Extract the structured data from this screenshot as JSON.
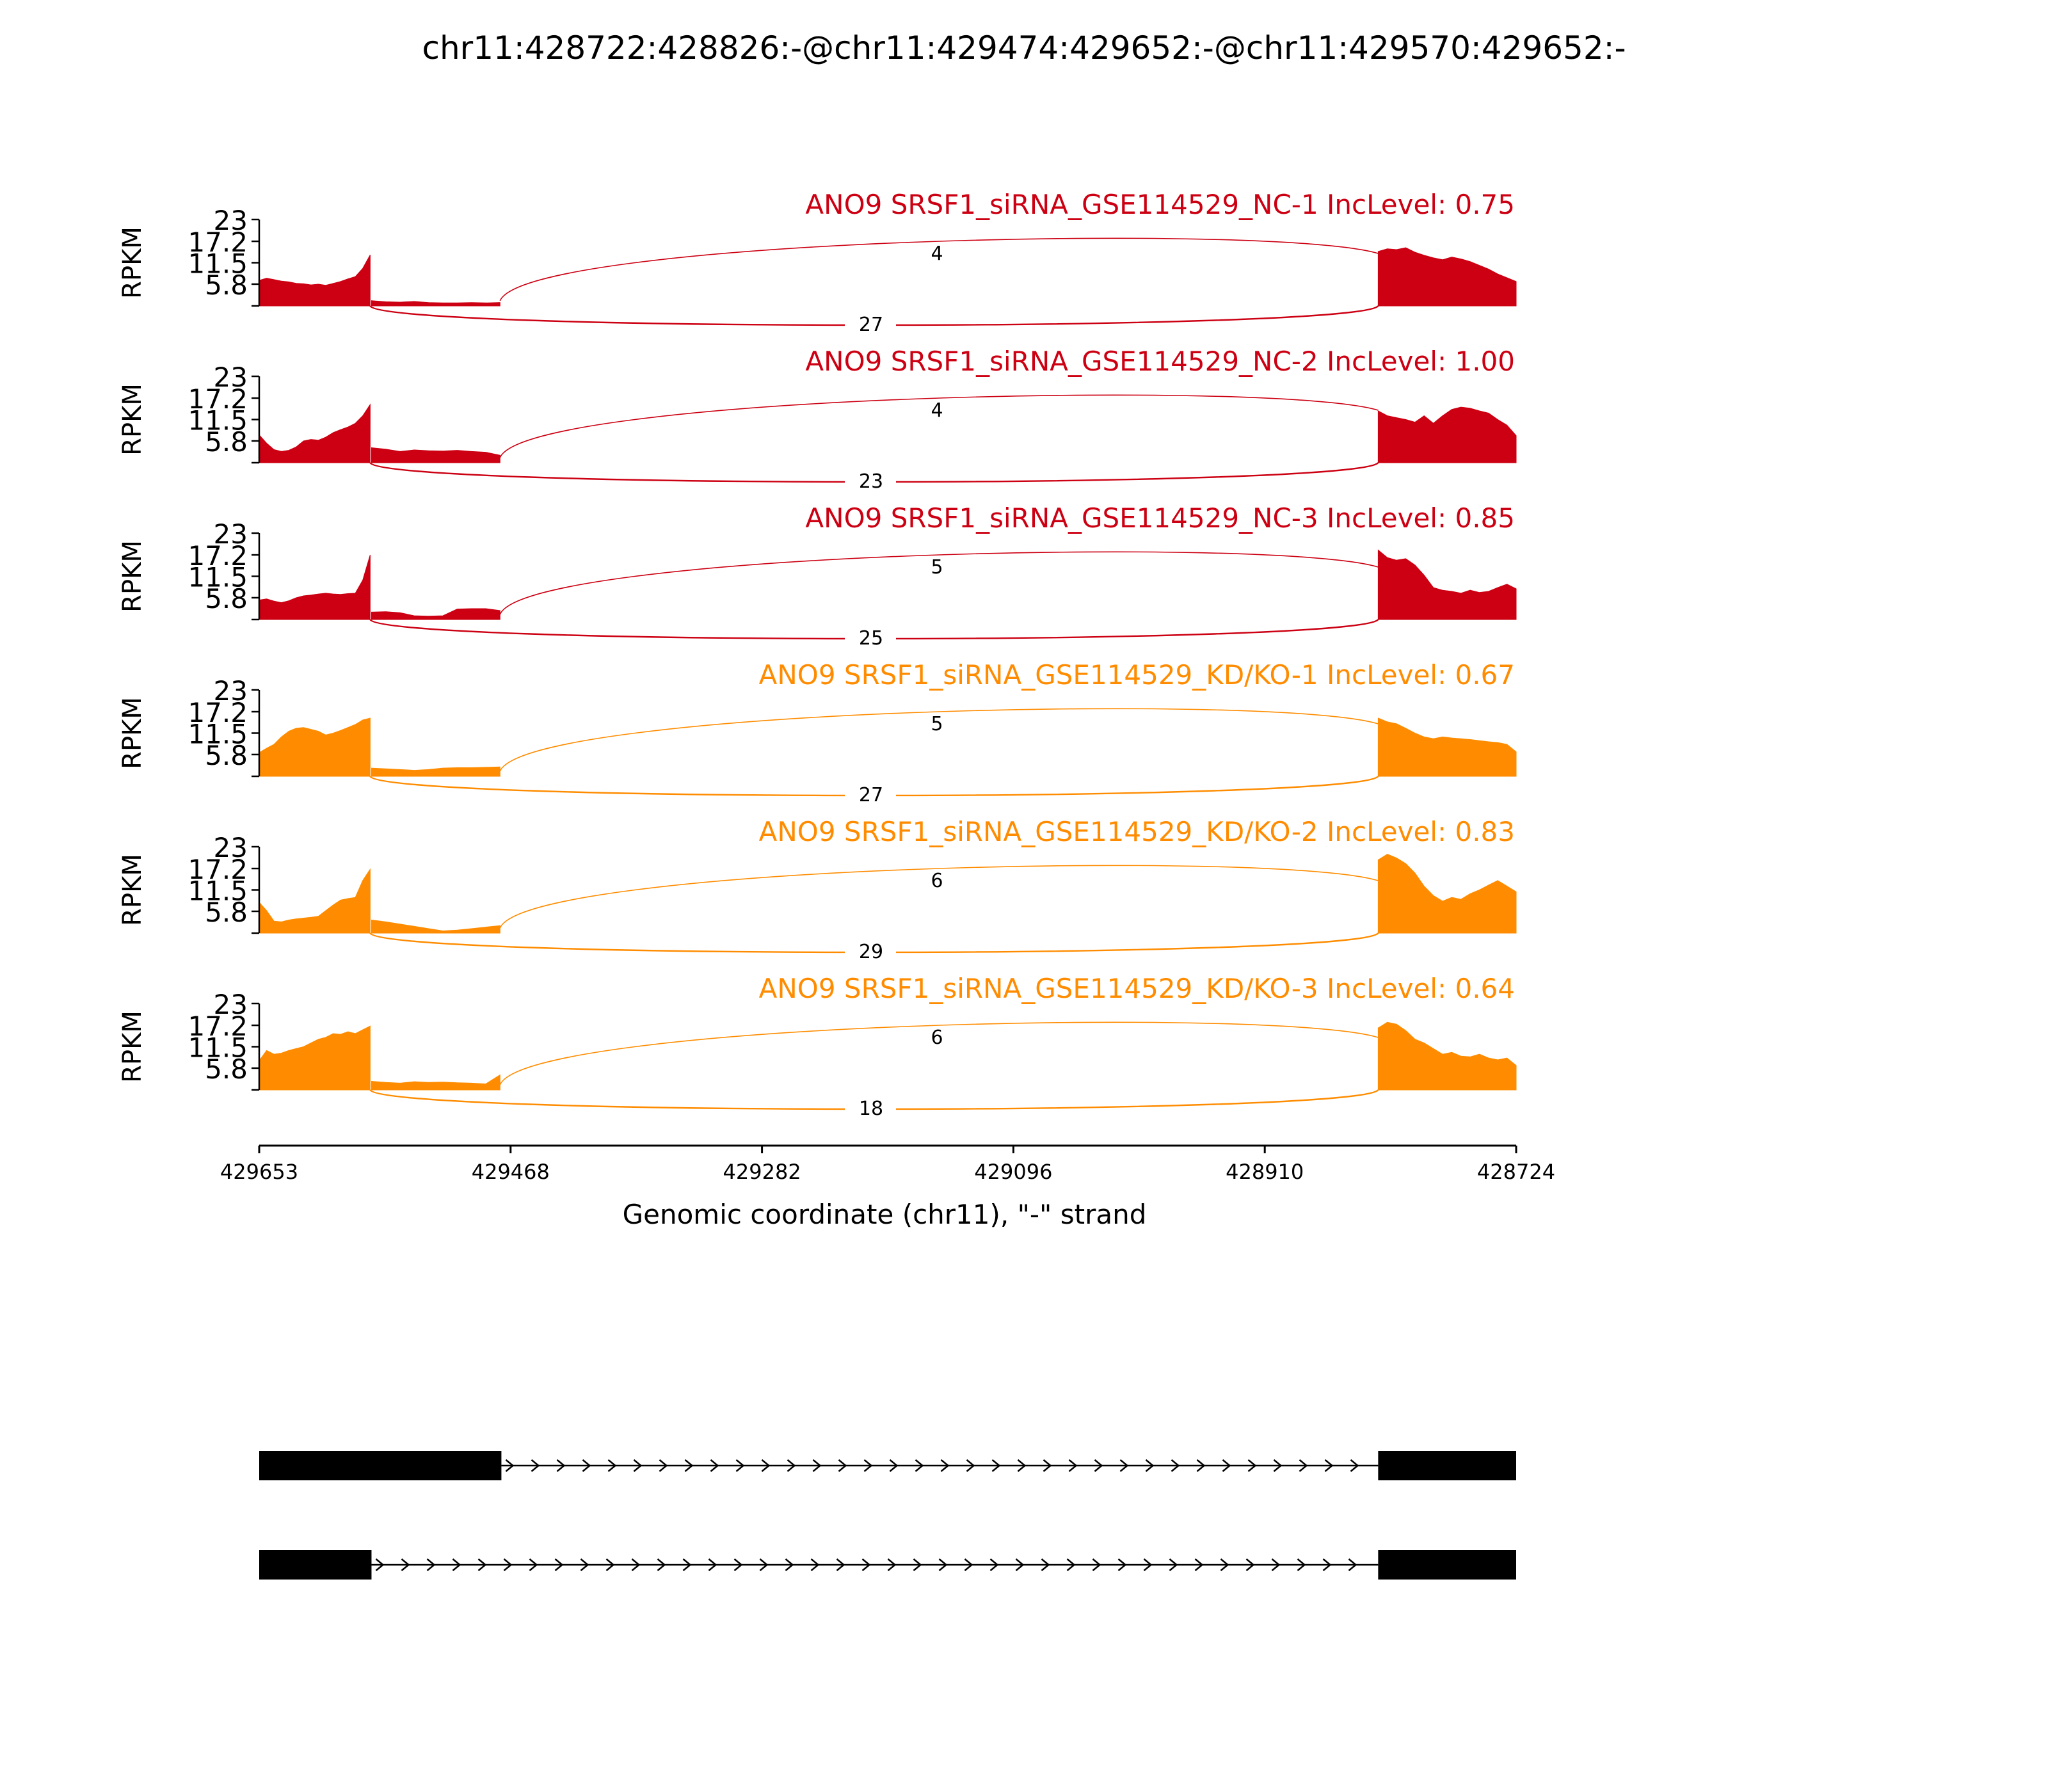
{
  "chart_data": {
    "type": "area",
    "title": "chr11:428722:428826:-@chr11:429474:429652:-@chr11:429570:429652:-",
    "xlabel": "Genomic coordinate (chr11), \"-\" strand",
    "ylabel": "RPKM",
    "xlim": [
      429653,
      428724
    ],
    "x_ticks": [
      "429653",
      "429468",
      "429282",
      "429096",
      "428910",
      "428724"
    ],
    "ylim": [
      0,
      23
    ],
    "y_ticks": [
      "5.8",
      "11.5",
      "17.2",
      "23"
    ],
    "colors": {
      "nc": "#cc0012",
      "kd": "#ff8c00",
      "gene_model": "#000000"
    },
    "panels": [
      {
        "name": "ANO9 SRSF1_siRNA_GSE114529_NC-1 IncLevel: 0.75",
        "group": "nc",
        "junction_top": "4",
        "junction_bottom": "27",
        "regions": [
          {
            "range": [
              429653,
              429571
            ],
            "values": [
              6.8,
              7.4,
              7.0,
              6.6,
              6.4,
              6.0,
              5.9,
              5.6,
              5.8,
              5.5,
              6.0,
              6.5,
              7.2,
              7.8,
              10.0,
              13.6
            ]
          },
          {
            "range": [
              429570,
              429475
            ],
            "values": [
              1.4,
              1.1,
              1.0,
              1.2,
              0.9,
              0.8,
              0.8,
              0.9,
              0.8,
              0.9
            ]
          },
          {
            "range": [
              428826,
              428724
            ],
            "values": [
              14.5,
              15.2,
              15.0,
              15.5,
              14.3,
              13.5,
              12.8,
              12.3,
              13.0,
              12.5,
              11.8,
              10.8,
              9.8,
              8.5,
              7.5,
              6.5
            ]
          }
        ]
      },
      {
        "name": "ANO9 SRSF1_siRNA_GSE114529_NC-2 IncLevel: 1.00",
        "group": "nc",
        "junction_top": "4",
        "junction_bottom": "23",
        "regions": [
          {
            "range": [
              429653,
              429571
            ],
            "values": [
              7.4,
              5.2,
              3.5,
              3.0,
              3.3,
              4.2,
              5.8,
              6.2,
              6.0,
              6.8,
              8.0,
              8.8,
              9.5,
              10.5,
              12.5,
              15.5
            ]
          },
          {
            "range": [
              429570,
              429475
            ],
            "values": [
              4.0,
              3.6,
              3.0,
              3.4,
              3.2,
              3.1,
              3.3,
              3.0,
              2.8,
              2.0
            ]
          },
          {
            "range": [
              428826,
              428724
            ],
            "values": [
              13.8,
              12.5,
              12.0,
              11.5,
              10.8,
              12.5,
              10.5,
              12.5,
              14.2,
              14.8,
              14.5,
              13.8,
              13.2,
              11.5,
              10.0,
              7.2
            ]
          }
        ]
      },
      {
        "name": "ANO9 SRSF1_siRNA_GSE114529_NC-3 IncLevel: 0.85",
        "group": "nc",
        "junction_top": "5",
        "junction_bottom": "25",
        "regions": [
          {
            "range": [
              429653,
              429571
            ],
            "values": [
              5.2,
              5.5,
              4.9,
              4.5,
              5.0,
              5.8,
              6.3,
              6.5,
              6.8,
              7.0,
              6.8,
              6.7,
              6.9,
              7.0,
              10.5,
              17.2
            ]
          },
          {
            "range": [
              429570,
              429475
            ],
            "values": [
              2.0,
              2.1,
              1.8,
              1.0,
              0.9,
              1.0,
              2.8,
              2.9,
              2.9,
              2.4
            ]
          },
          {
            "range": [
              428826,
              428724
            ],
            "values": [
              18.5,
              16.5,
              15.8,
              16.2,
              14.5,
              11.8,
              8.5,
              7.8,
              7.5,
              7.0,
              7.8,
              7.2,
              7.5,
              8.5,
              9.4,
              8.2
            ]
          }
        ]
      },
      {
        "name": "ANO9 SRSF1_siRNA_GSE114529_KD/KO-1 IncLevel: 0.67",
        "group": "kd",
        "junction_top": "5",
        "junction_bottom": "27",
        "regions": [
          {
            "range": [
              429653,
              429571
            ],
            "values": [
              6.3,
              7.5,
              8.5,
              10.5,
              12.0,
              12.8,
              13.0,
              12.5,
              12.0,
              11.0,
              11.5,
              12.2,
              13.0,
              13.8,
              15.0,
              15.5
            ]
          },
          {
            "range": [
              429570,
              429475
            ],
            "values": [
              2.2,
              2.0,
              1.8,
              1.6,
              1.8,
              2.2,
              2.3,
              2.3,
              2.4,
              2.5
            ]
          },
          {
            "range": [
              428826,
              428724
            ],
            "values": [
              15.5,
              14.5,
              14.0,
              12.8,
              11.5,
              10.5,
              10.0,
              10.5,
              10.2,
              10.0,
              9.8,
              9.5,
              9.2,
              9.0,
              8.5,
              6.5
            ]
          }
        ]
      },
      {
        "name": "ANO9 SRSF1_siRNA_GSE114529_KD/KO-2 IncLevel: 0.83",
        "group": "kd",
        "junction_top": "6",
        "junction_bottom": "29",
        "regions": [
          {
            "range": [
              429653,
              429571
            ],
            "values": [
              8.2,
              6.0,
              3.2,
              3.0,
              3.5,
              3.8,
              4.0,
              4.2,
              4.5,
              6.0,
              7.5,
              8.8,
              9.2,
              9.5,
              14.0,
              17.0
            ]
          },
          {
            "range": [
              429570,
              429475
            ],
            "values": [
              3.5,
              3.0,
              2.4,
              1.8,
              1.2,
              0.6,
              0.8,
              1.2,
              1.6,
              2.0
            ]
          },
          {
            "range": [
              428826,
              428724
            ],
            "values": [
              19.5,
              21.0,
              20.0,
              18.5,
              16.0,
              12.5,
              10.0,
              8.5,
              9.5,
              9.0,
              10.5,
              11.5,
              12.8,
              14.0,
              12.5,
              11.0
            ]
          }
        ]
      },
      {
        "name": "ANO9 SRSF1_siRNA_GSE114529_KD/KO-3 IncLevel: 0.64",
        "group": "kd",
        "junction_top": "6",
        "junction_bottom": "18",
        "regions": [
          {
            "range": [
              429653,
              429571
            ],
            "values": [
              7.8,
              10.5,
              9.5,
              9.8,
              10.5,
              11.0,
              11.5,
              12.5,
              13.5,
              14.0,
              15.0,
              14.8,
              15.5,
              15.0,
              16.0,
              17.0
            ]
          },
          {
            "range": [
              429570,
              429475
            ],
            "values": [
              2.3,
              2.0,
              1.8,
              2.2,
              2.0,
              2.1,
              1.9,
              1.8,
              1.6,
              4.0
            ]
          },
          {
            "range": [
              428826,
              428724
            ],
            "values": [
              16.5,
              18.0,
              17.5,
              15.8,
              13.5,
              12.5,
              11.0,
              9.5,
              10.0,
              9.0,
              8.8,
              9.5,
              8.5,
              8.0,
              8.5,
              6.5
            ]
          }
        ]
      }
    ],
    "gene_model": {
      "transcripts": [
        {
          "exons": [
            [
              429653,
              429474
            ],
            [
              428826,
              428724
            ]
          ]
        },
        {
          "exons": [
            [
              429653,
              429570
            ],
            [
              428826,
              428724
            ]
          ]
        }
      ]
    }
  }
}
